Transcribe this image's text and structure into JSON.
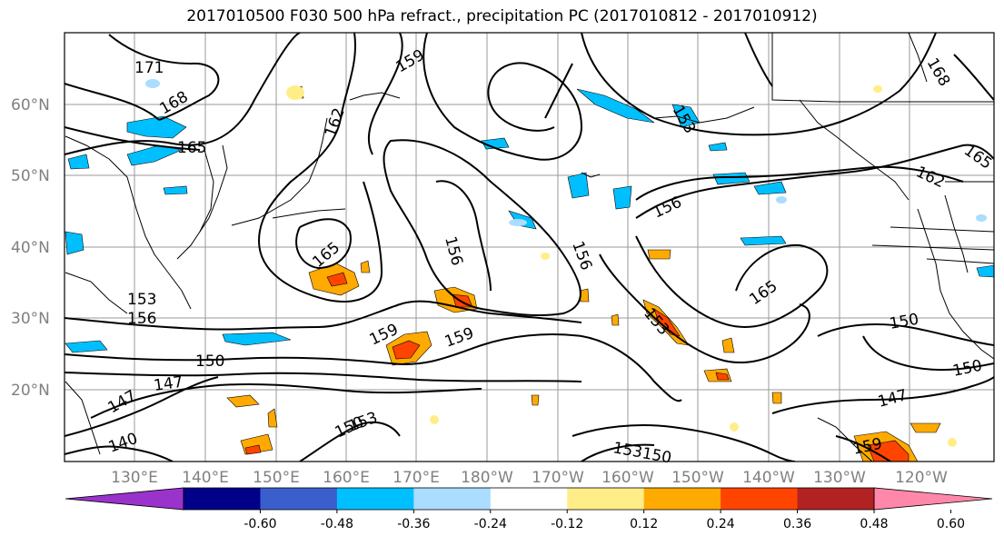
{
  "title": "2017010500 F030 500 hPa refract., precipitation PC (2017010812 - 2017010912)",
  "lat_labels": [
    "60°N",
    "50°N",
    "40°N",
    "30°N",
    "20°N"
  ],
  "lon_labels": [
    "130°E",
    "140°E",
    "150°E",
    "160°E",
    "170°E",
    "180°W",
    "170°W",
    "160°W",
    "150°W",
    "140°W",
    "130°W",
    "120°W"
  ],
  "colorbar": {
    "colors": [
      "#9933cc",
      "#000088",
      "#3a5fcd",
      "#00bfff",
      "#aaddff",
      "#ffffff",
      "#ffee88",
      "#ffaa00",
      "#ff4400",
      "#b22222",
      "#ff88aa"
    ],
    "tick_labels": [
      "-0.60",
      "-0.48",
      "-0.36",
      "-0.24",
      "-0.12",
      "0.12",
      "0.24",
      "0.36",
      "0.48",
      "0.60"
    ]
  },
  "contour_labels": [
    "171",
    "168",
    "165",
    "162",
    "159",
    "168",
    "165",
    "162",
    "165",
    "156",
    "156",
    "156",
    "165",
    "153",
    "159",
    "159",
    "153",
    "156",
    "150",
    "150",
    "147",
    "147",
    "150",
    "147",
    "159",
    "150",
    "153",
    "150",
    "140",
    "153",
    "153"
  ]
}
